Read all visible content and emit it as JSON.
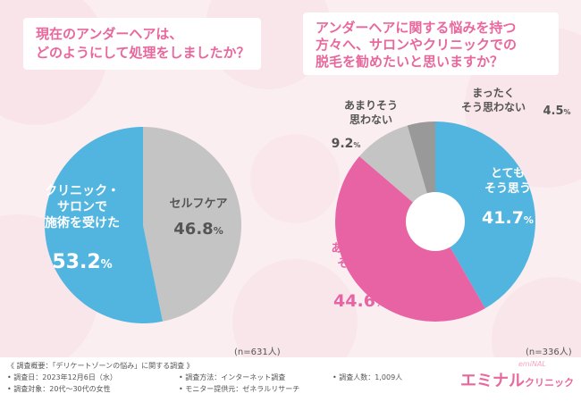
{
  "titles": {
    "left": [
      "現在のアンダーヘアは、",
      "どのようにして処理をしましたか？"
    ],
    "right": [
      "アンダーヘアに関する悩みを持つ",
      "方々へ、サロンやクリニックでの",
      "脱毛を勧めたいと思いますか？"
    ]
  },
  "chart_data": [
    {
      "type": "pie",
      "title": "現在のアンダーヘアは、どのようにして処理をしましたか？",
      "slices": [
        {
          "label_lines": [
            "セルフケア"
          ],
          "value": 46.8,
          "value_label": "46.8%",
          "color": "#c4c4c4"
        },
        {
          "label_lines": [
            "クリニック・",
            "サロンで",
            "施術を受けた"
          ],
          "value": 53.2,
          "value_label": "53.2%",
          "color": "#52b5df"
        }
      ],
      "n_label": "(n=631人)"
    },
    {
      "type": "pie",
      "title": "アンダーヘアに関する悩みを持つ方々へ、サロンやクリニックでの脱毛を勧めたいと思いますか？",
      "donut": true,
      "slices": [
        {
          "label_lines": [
            "とても",
            "そう思う"
          ],
          "value": 41.7,
          "value_label": "41.7%",
          "color": "#52b5df"
        },
        {
          "label_lines": [
            "ある程度は",
            "そう思う"
          ],
          "value": 44.6,
          "value_label": "44.6%",
          "color": "#e863a4"
        },
        {
          "label_lines": [
            "あまりそう",
            "思わない"
          ],
          "value": 9.2,
          "value_label": "9.2%",
          "color": "#c4c4c4"
        },
        {
          "label_lines": [
            "まったく",
            "そう思わない"
          ],
          "value": 4.5,
          "value_label": "4.5%",
          "color": "#999999"
        }
      ],
      "n_label": "(n=336人)"
    }
  ],
  "footer": {
    "overview": "《 調査概要：「デリケートゾーンの悩み」に関する調査 》",
    "date": "• 調査日：2023年12月6日（水）",
    "method": "• 調査方法：インターネット調査",
    "count": "• 調査人数：1,009人",
    "target": "• 調査対象：20代～30代の女性",
    "monitor": "• モニター提供元：ゼネラルリサーチ"
  },
  "logo": {
    "main": "エミナル",
    "sub": "クリニック",
    "script": "emiNAL"
  }
}
